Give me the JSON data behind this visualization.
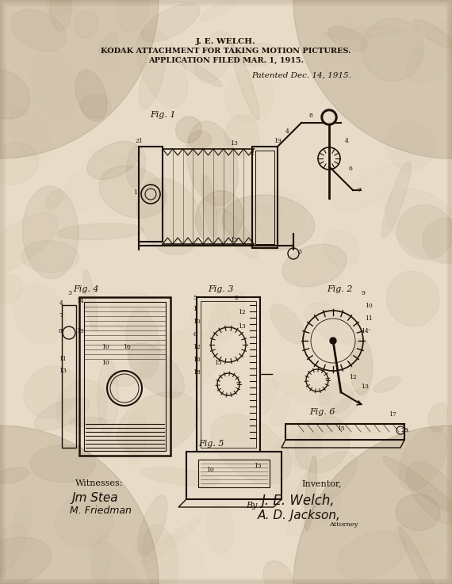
{
  "title_line1": "J. E. WELCH.",
  "title_line2": "KODAK ATTACHMENT FOR TAKING MOTION PICTURES.",
  "title_line3": "APPLICATION FILED MAR. 1, 1915.",
  "patent_date": "Patented Dec. 14, 1915.",
  "fig_labels": [
    "Fig. 1",
    "Fig. 2",
    "Fig. 3",
    "Fig. 4",
    "Fig. 5",
    "Fig. 6"
  ],
  "witnesses_label": "Witnesses:",
  "witness1": "Jm Stea",
  "witness2": "M. Friedman",
  "inventor_label": "Inventor,",
  "by_label": "By",
  "inventor_name1": "J. E. Welch,",
  "inventor_name2": "A. D. Jackson,",
  "attorney_label": "Attorney",
  "bg_color_outer": "#c8b99a",
  "bg_color_inner": "#d4c5a9",
  "paper_color": "#e8dcc8",
  "ink_color": "#1a1008",
  "fig_label_color": "#2a1a08",
  "title_fontsize": 7,
  "title_bold_fontsize": 7.5,
  "patent_date_fontsize": 7,
  "annotation_fontsize": 5.5,
  "signature_fontsize": 9
}
